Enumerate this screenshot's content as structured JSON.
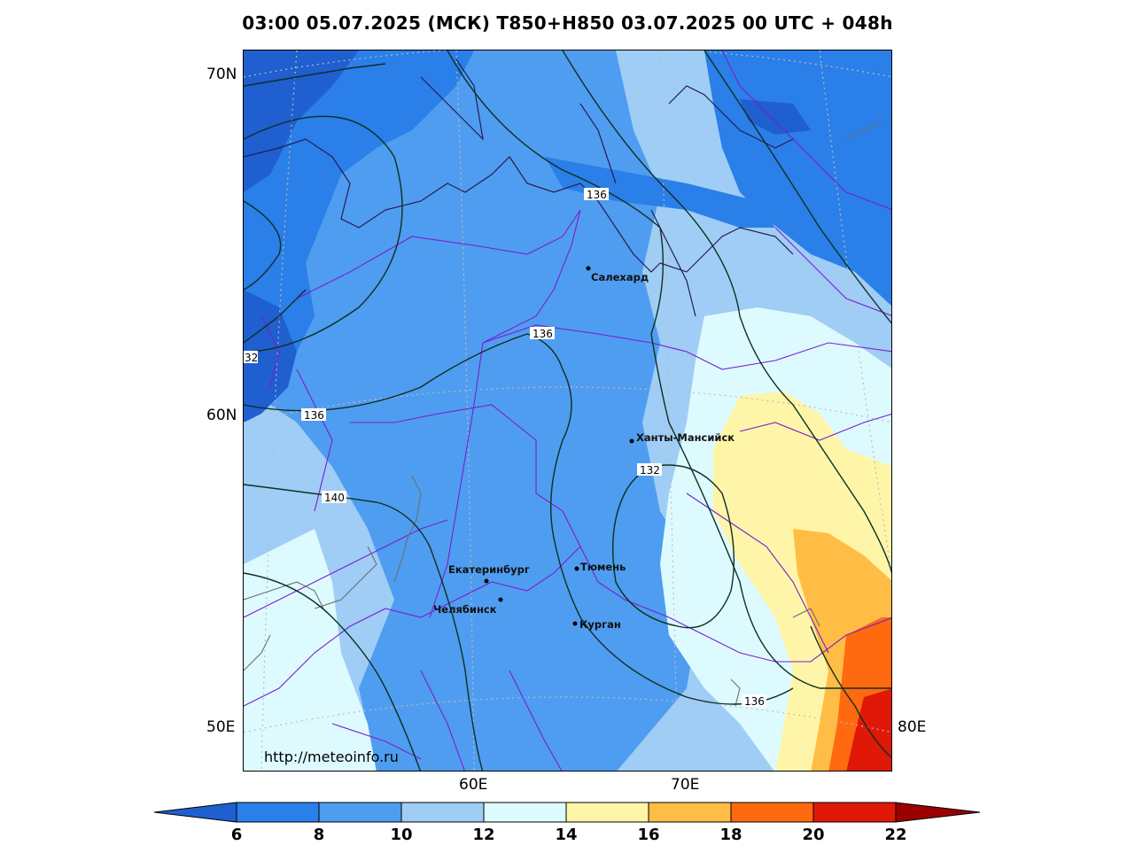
{
  "title": "03:00 05.07.2025 (МСК) T850+H850 03.07.2025 00 UTC + 048h",
  "url": "http://meteoinfo.ru",
  "lat_labels": [
    "70N",
    "60N",
    "50E"
  ],
  "lon_labels": [
    "60E",
    "70E",
    "80E"
  ],
  "cities": [
    {
      "name": "Салехард"
    },
    {
      "name": "Ханты-Мансийск"
    },
    {
      "name": "Екатеринбург"
    },
    {
      "name": "Тюмень"
    },
    {
      "name": "Челябинск"
    },
    {
      "name": "Курган"
    }
  ],
  "contour_labels": [
    "136",
    "136",
    "136",
    "140",
    "132",
    "136",
    "32"
  ],
  "colorbar": {
    "ticks": [
      "6",
      "8",
      "10",
      "12",
      "14",
      "16",
      "18",
      "20",
      "22"
    ],
    "colors": {
      "below": "#1f5fcf",
      "c6_8": "#2a7fe8",
      "c8_10": "#4f9df0",
      "c10_12": "#9fcdf5",
      "c12_14": "#ddfbff",
      "c14_16": "#fff5a8",
      "c16_18": "#ffbd45",
      "c18_20": "#ff6a10",
      "c20_22": "#e01808",
      "above": "#9b0000"
    }
  }
}
